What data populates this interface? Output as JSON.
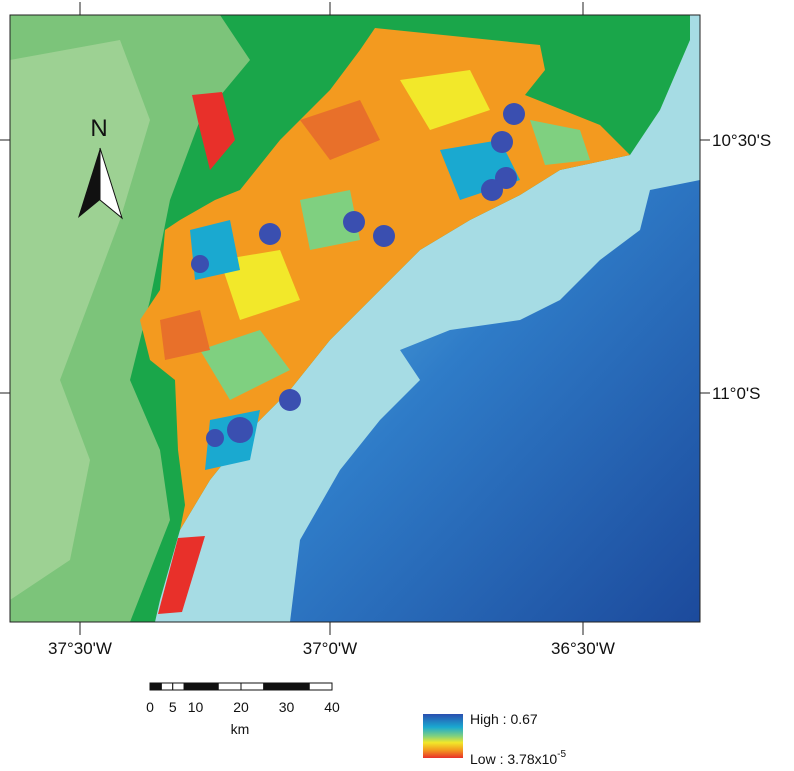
{
  "map": {
    "x_labels": [
      "37°30'W",
      "37°0'W",
      "36°30'W"
    ],
    "y_labels": [
      "10°30'S",
      "11°0'S"
    ],
    "north": "N",
    "scale_bar": {
      "ticks": [
        0,
        5,
        10,
        20,
        30,
        40
      ],
      "unit": "km"
    },
    "legend": {
      "high": "High : 0.67",
      "low": "Low : 3.78x10",
      "low_exponent": "-5"
    }
  }
}
